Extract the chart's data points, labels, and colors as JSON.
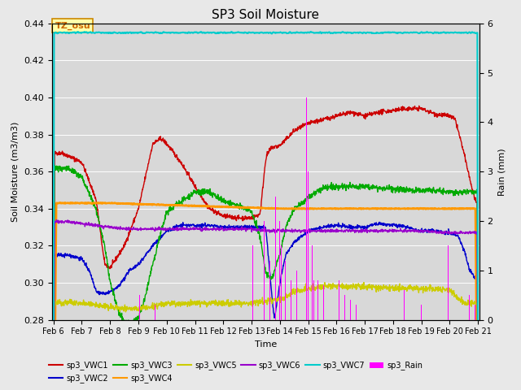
{
  "title": "SP3 Soil Moisture",
  "xlabel": "Time",
  "ylabel_left": "Soil Moisture (m3/m3)",
  "ylabel_right": "Rain (mm)",
  "ylim_left": [
    0.28,
    0.44
  ],
  "ylim_right": [
    0.0,
    6.0
  ],
  "bg_color": "#e8e8e8",
  "plot_bg": "#d8d8d8",
  "annotation_text": "TZ_osu",
  "annotation_color": "#cc6600",
  "annotation_bg": "#ffffaa",
  "colors": {
    "VWC1": "#cc0000",
    "VWC2": "#0000cc",
    "VWC3": "#00aa00",
    "VWC4": "#ff9900",
    "VWC5": "#cccc00",
    "VWC6": "#9900cc",
    "VWC7": "#00cccc",
    "Rain": "#ff00ff"
  },
  "n_points": 1500,
  "x_start": 6.0,
  "x_end": 21.0,
  "x_ticks": [
    6,
    7,
    8,
    9,
    10,
    11,
    12,
    13,
    14,
    15,
    16,
    17,
    18,
    19,
    20,
    21
  ],
  "x_tick_labels": [
    "Feb 6",
    "Feb 7",
    "Feb 8",
    "Feb 9",
    "Feb 10",
    "Feb 11",
    "Feb 12",
    "Feb 13",
    "Feb 14",
    "Feb 15",
    "Feb 16",
    "Feb 17",
    "Feb 18",
    "Feb 19",
    "Feb 20",
    "Feb 21"
  ]
}
